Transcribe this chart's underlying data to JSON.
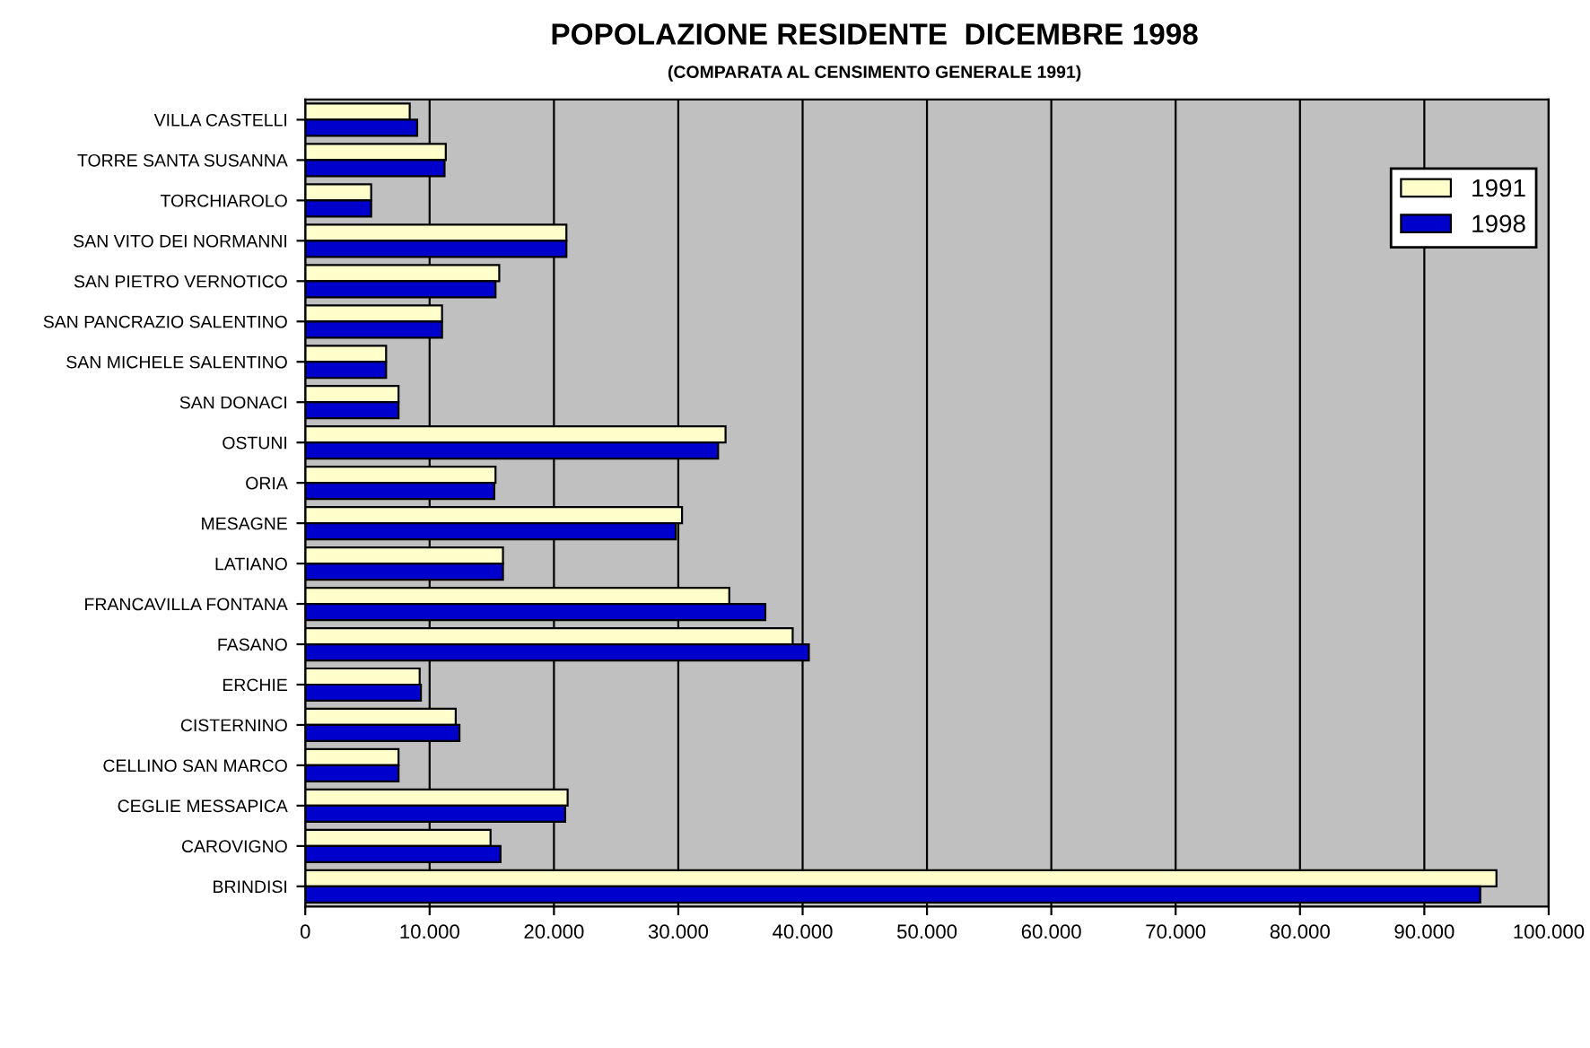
{
  "chart_data": {
    "type": "bar",
    "orientation": "horizontal",
    "title": "POPOLAZIONE RESIDENTE  DICEMBRE 1998",
    "subtitle": "(COMPARATA AL CENSIMENTO GENERALE 1991)",
    "categories": [
      "VILLA CASTELLI",
      "TORRE SANTA SUSANNA",
      "TORCHIAROLO",
      "SAN VITO DEI NORMANNI",
      "SAN PIETRO VERNOTICO",
      "SAN PANCRAZIO SALENTINO",
      "SAN MICHELE SALENTINO",
      "SAN DONACI",
      "OSTUNI",
      "ORIA",
      "MESAGNE",
      "LATIANO",
      "FRANCAVILLA FONTANA",
      "FASANO",
      "ERCHIE",
      "CISTERNINO",
      "CELLINO SAN MARCO",
      "CEGLIE MESSAPICA",
      "CAROVIGNO",
      "BRINDISI"
    ],
    "series": [
      {
        "name": "1991",
        "color": "#ffffcc",
        "values": [
          8400,
          11300,
          5300,
          21000,
          15600,
          11000,
          6500,
          7500,
          33800,
          15300,
          30300,
          15900,
          34100,
          39200,
          9200,
          12100,
          7500,
          21100,
          14900,
          95800
        ]
      },
      {
        "name": "1998",
        "color": "#0000cc",
        "values": [
          9000,
          11200,
          5300,
          21000,
          15300,
          11000,
          6500,
          7500,
          33200,
          15200,
          29800,
          15900,
          37000,
          40500,
          9300,
          12400,
          7500,
          20900,
          15700,
          94500
        ]
      }
    ],
    "xlim": [
      0,
      100000
    ],
    "xticks": [
      0,
      {
        "value": 10000,
        "label": "10.000"
      },
      {
        "value": 20000,
        "label": "20.000"
      },
      {
        "value": 30000,
        "label": "30.000"
      },
      {
        "value": 40000,
        "label": "40.000"
      },
      {
        "value": 50000,
        "label": "50.000"
      },
      {
        "value": 60000,
        "label": "60.000"
      },
      {
        "value": 70000,
        "label": "70.000"
      },
      {
        "value": 80000,
        "label": "80.000"
      },
      {
        "value": 90000,
        "label": "90.000"
      },
      {
        "value": 100000,
        "label": "100.000"
      }
    ],
    "grid": "x",
    "legend": "top right"
  }
}
